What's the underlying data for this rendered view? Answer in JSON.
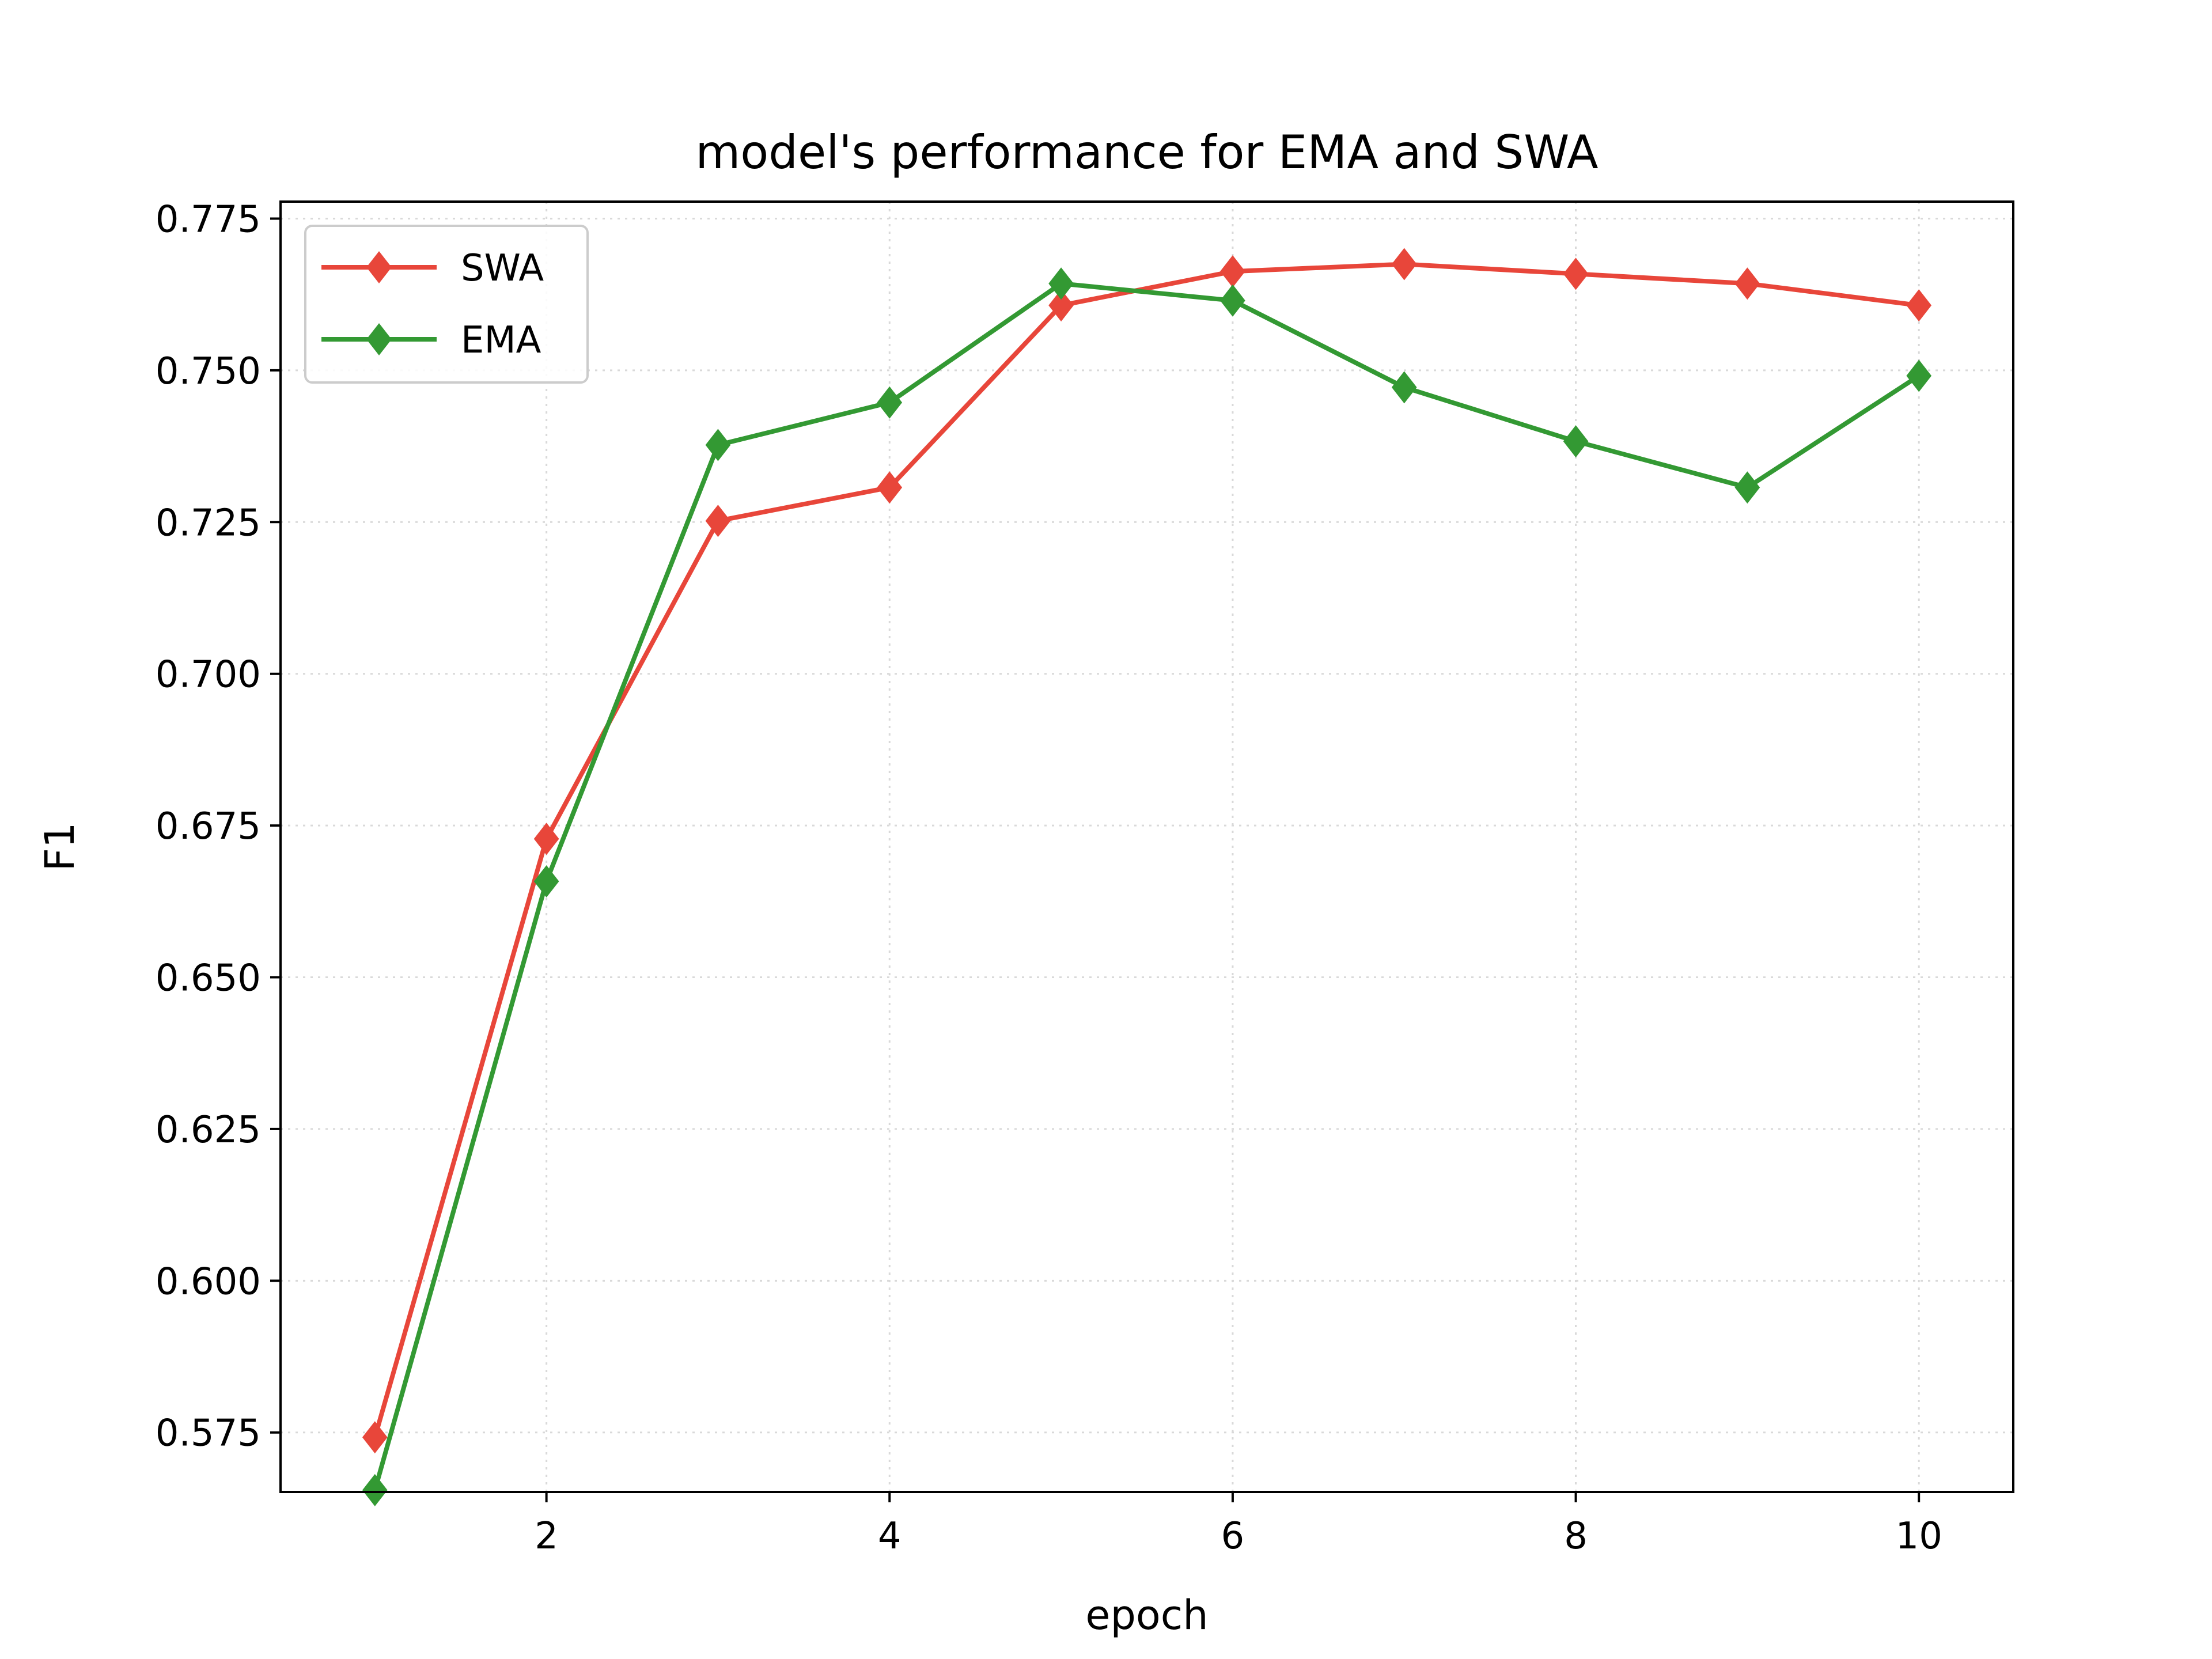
{
  "chart_data": {
    "type": "line",
    "title": "model's performance for EMA and SWA",
    "xlabel": "epoch",
    "ylabel": "F1",
    "x": [
      1,
      2,
      3,
      4,
      5,
      6,
      7,
      8,
      9,
      10
    ],
    "xlim": [
      0.45,
      10.55
    ],
    "ylim": [
      0.5652,
      0.7778
    ],
    "xticks": [
      2,
      4,
      6,
      8,
      10
    ],
    "xtick_labels": [
      "2",
      "4",
      "6",
      "8",
      "10"
    ],
    "yticks": [
      0.575,
      0.6,
      0.625,
      0.65,
      0.675,
      0.7,
      0.725,
      0.75,
      0.775
    ],
    "ytick_labels": [
      "0.575",
      "0.600",
      "0.625",
      "0.650",
      "0.675",
      "0.700",
      "0.725",
      "0.750",
      "0.775"
    ],
    "grid": true,
    "legend_position": "upper-left",
    "series": [
      {
        "name": "SWA",
        "color": "#e8463a",
        "marker": "diamond",
        "values": [
          0.5742,
          0.6728,
          0.7252,
          0.7307,
          0.7607,
          0.7663,
          0.7675,
          0.7659,
          0.7643,
          0.7607
        ]
      },
      {
        "name": "EMA",
        "color": "#339933",
        "marker": "diamond",
        "values": [
          0.5655,
          0.6658,
          0.7377,
          0.7447,
          0.7643,
          0.7615,
          0.7472,
          0.7383,
          0.7307,
          0.7491
        ]
      }
    ]
  }
}
